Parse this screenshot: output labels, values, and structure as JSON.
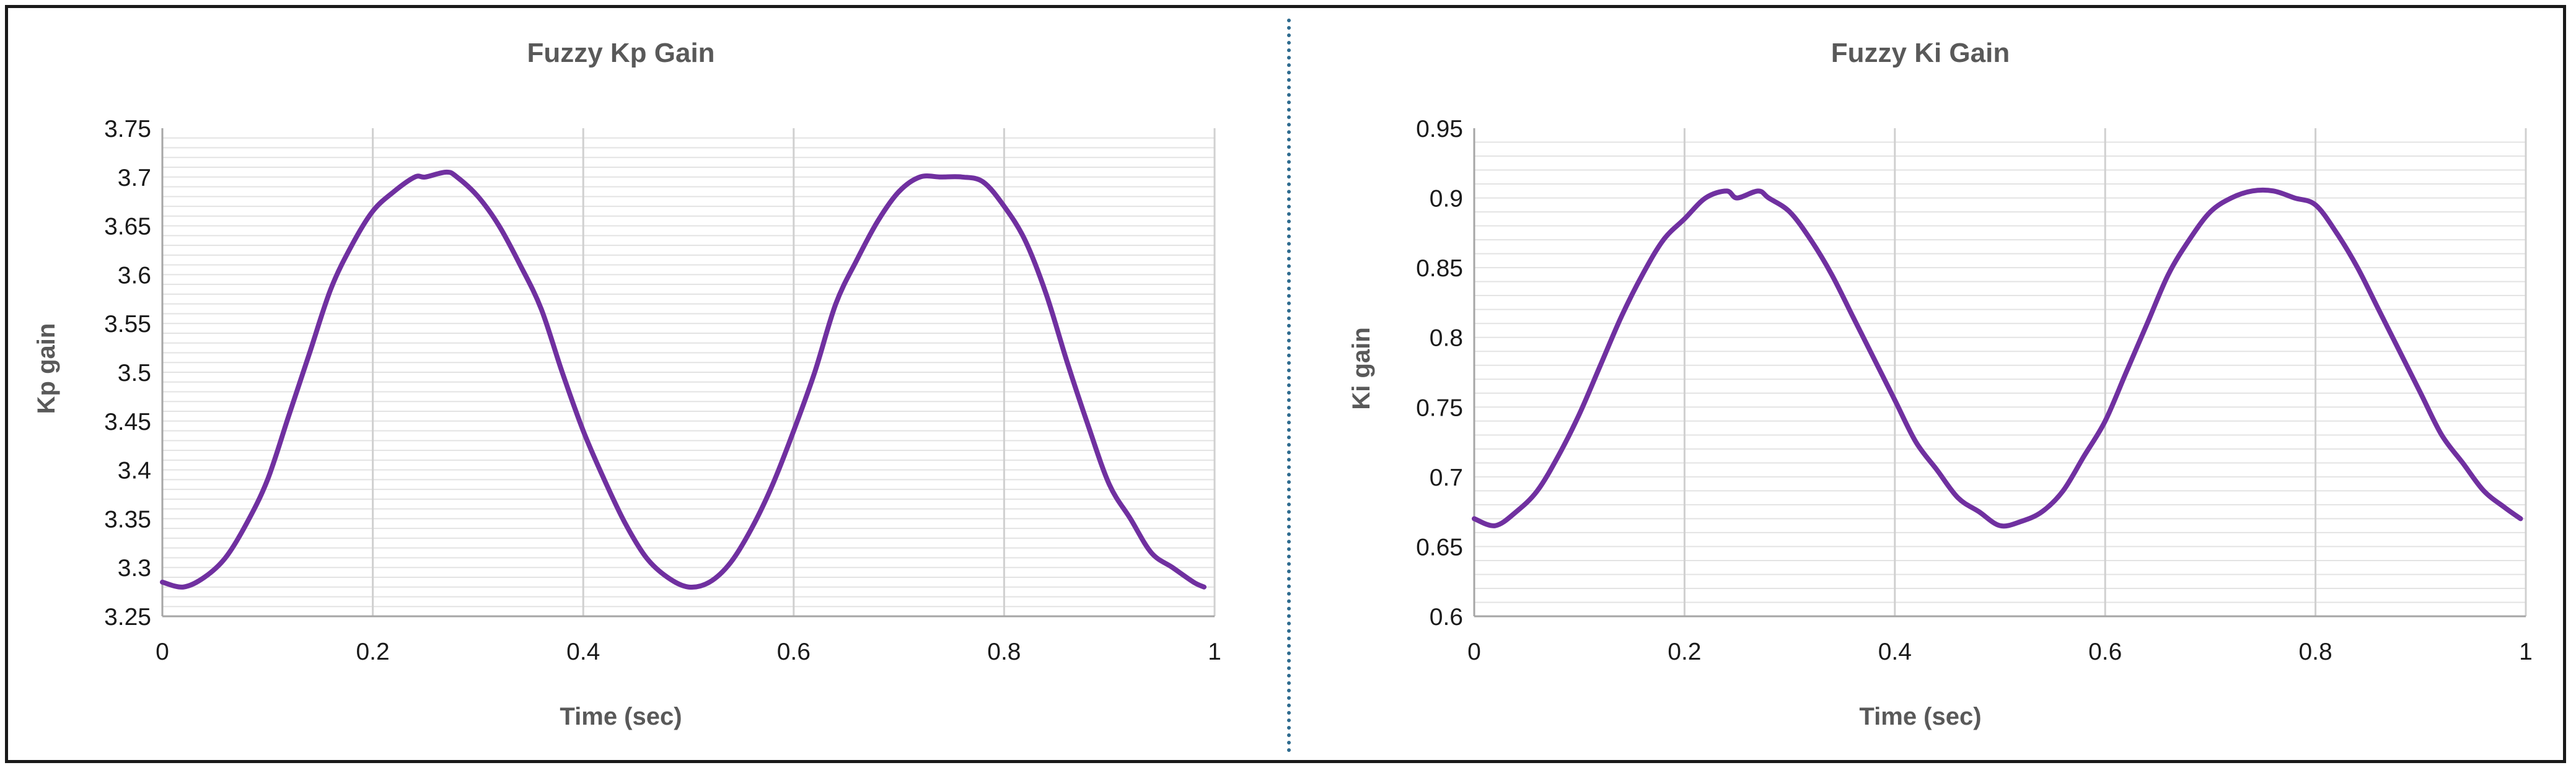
{
  "colors": {
    "line": "#7030a0",
    "frame": "#1a1a1a",
    "divider": "#2e6b8f"
  },
  "chart_data": [
    {
      "type": "line",
      "title": "Fuzzy Kp Gain",
      "xlabel": "Time (sec)",
      "ylabel": "Kp gain",
      "xlim": [
        0,
        1
      ],
      "ylim": [
        3.25,
        3.75
      ],
      "x_ticks": [
        0,
        0.2,
        0.4,
        0.6,
        0.8,
        1
      ],
      "x_tick_labels": [
        "0",
        "0.2",
        "0.4",
        "0.6",
        "0.8",
        "1"
      ],
      "y_ticks": [
        3.25,
        3.3,
        3.35,
        3.4,
        3.45,
        3.5,
        3.55,
        3.6,
        3.65,
        3.7,
        3.75
      ],
      "y_tick_labels": [
        "3.25",
        "3.3",
        "3.35",
        "3.4",
        "3.45",
        "3.5",
        "3.55",
        "3.6",
        "3.65",
        "3.7",
        "3.75"
      ],
      "y_minor_step": 0.01,
      "grid": true,
      "legend": "none",
      "series": [
        {
          "x": [
            0,
            0.02,
            0.04,
            0.06,
            0.08,
            0.1,
            0.12,
            0.14,
            0.16,
            0.18,
            0.2,
            0.22,
            0.24,
            0.25,
            0.27,
            0.28,
            0.3,
            0.32,
            0.34,
            0.36,
            0.38,
            0.4,
            0.42,
            0.44,
            0.46,
            0.48,
            0.5,
            0.52,
            0.54,
            0.56,
            0.58,
            0.6,
            0.62,
            0.64,
            0.66,
            0.68,
            0.7,
            0.72,
            0.74,
            0.76,
            0.78,
            0.8,
            0.82,
            0.84,
            0.86,
            0.88,
            0.9,
            0.92,
            0.94,
            0.96,
            0.98,
            0.99
          ],
          "values": [
            3.285,
            3.28,
            3.29,
            3.31,
            3.345,
            3.39,
            3.455,
            3.52,
            3.585,
            3.63,
            3.665,
            3.685,
            3.7,
            3.7,
            3.705,
            3.7,
            3.68,
            3.65,
            3.61,
            3.565,
            3.5,
            3.44,
            3.39,
            3.345,
            3.31,
            3.29,
            3.28,
            3.285,
            3.305,
            3.34,
            3.385,
            3.44,
            3.5,
            3.57,
            3.615,
            3.655,
            3.685,
            3.7,
            3.7,
            3.7,
            3.695,
            3.67,
            3.635,
            3.58,
            3.51,
            3.445,
            3.385,
            3.35,
            3.315,
            3.3,
            3.285,
            3.28
          ]
        }
      ]
    },
    {
      "type": "line",
      "title": "Fuzzy Ki Gain",
      "xlabel": "Time (sec)",
      "ylabel": "Ki gain",
      "xlim": [
        0,
        1
      ],
      "ylim": [
        0.6,
        0.95
      ],
      "x_ticks": [
        0,
        0.2,
        0.4,
        0.6,
        0.8,
        1
      ],
      "x_tick_labels": [
        "0",
        "0.2",
        "0.4",
        "0.6",
        "0.8",
        "1"
      ],
      "y_ticks": [
        0.6,
        0.65,
        0.7,
        0.75,
        0.8,
        0.85,
        0.9,
        0.95
      ],
      "y_tick_labels": [
        "0.6",
        "0.65",
        "0.7",
        "0.75",
        "0.8",
        "0.85",
        "0.9",
        "0.95"
      ],
      "y_minor_step": 0.01,
      "grid": true,
      "legend": "none",
      "series": [
        {
          "x": [
            0,
            0.02,
            0.04,
            0.06,
            0.08,
            0.1,
            0.12,
            0.14,
            0.16,
            0.18,
            0.2,
            0.22,
            0.24,
            0.25,
            0.27,
            0.28,
            0.3,
            0.32,
            0.34,
            0.36,
            0.38,
            0.4,
            0.42,
            0.44,
            0.46,
            0.48,
            0.5,
            0.52,
            0.54,
            0.56,
            0.58,
            0.6,
            0.62,
            0.64,
            0.66,
            0.68,
            0.7,
            0.72,
            0.74,
            0.76,
            0.78,
            0.8,
            0.82,
            0.84,
            0.86,
            0.88,
            0.9,
            0.92,
            0.94,
            0.96,
            0.98,
            0.995
          ],
          "values": [
            0.67,
            0.665,
            0.675,
            0.69,
            0.715,
            0.745,
            0.78,
            0.815,
            0.845,
            0.87,
            0.885,
            0.9,
            0.905,
            0.9,
            0.905,
            0.9,
            0.89,
            0.87,
            0.845,
            0.815,
            0.785,
            0.755,
            0.725,
            0.705,
            0.685,
            0.675,
            0.665,
            0.668,
            0.675,
            0.69,
            0.715,
            0.74,
            0.775,
            0.81,
            0.845,
            0.87,
            0.89,
            0.9,
            0.905,
            0.905,
            0.9,
            0.895,
            0.875,
            0.85,
            0.82,
            0.79,
            0.76,
            0.73,
            0.71,
            0.69,
            0.678,
            0.67
          ]
        }
      ]
    }
  ]
}
